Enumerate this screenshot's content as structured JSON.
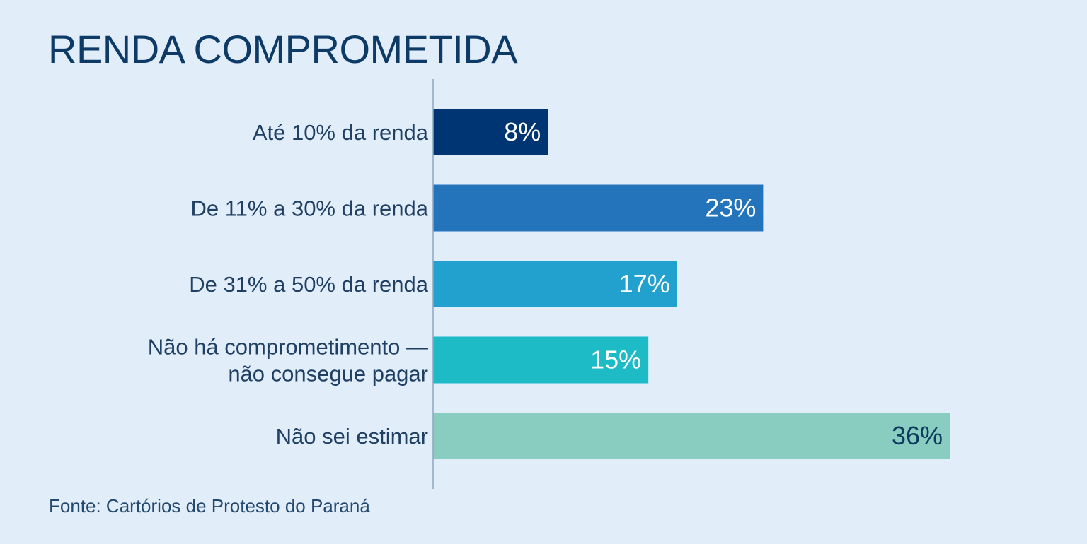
{
  "chart_data": {
    "type": "bar",
    "orientation": "horizontal",
    "title": "RENDA COMPROMETIDA",
    "source": "Fonte: Cartórios de Protesto do Paraná",
    "categories": [
      [
        "Até 10% da renda"
      ],
      [
        "De 11% a 30% da renda"
      ],
      [
        "De 31% a 50% da renda"
      ],
      [
        "Não há comprometimento —",
        "não consegue pagar"
      ],
      [
        "Não sei estimar"
      ]
    ],
    "values": [
      8,
      23,
      17,
      15,
      36
    ],
    "value_labels": [
      "8%",
      "23%",
      "17%",
      "15%",
      "36%"
    ],
    "xlim": [
      0,
      36
    ],
    "grid": false,
    "legend": "none"
  },
  "colors": {
    "background": "#e1edf9",
    "title": "#0d3a66",
    "category_text": "#1f3f63",
    "axis": "#8ca6bf",
    "bars": [
      "#003573",
      "#2474bb",
      "#22a1cf",
      "#1cbbc6",
      "#88cdbf"
    ],
    "value_label_colors": [
      "#ffffff",
      "#ffffff",
      "#ffffff",
      "#ffffff",
      "#0f3a60"
    ]
  }
}
